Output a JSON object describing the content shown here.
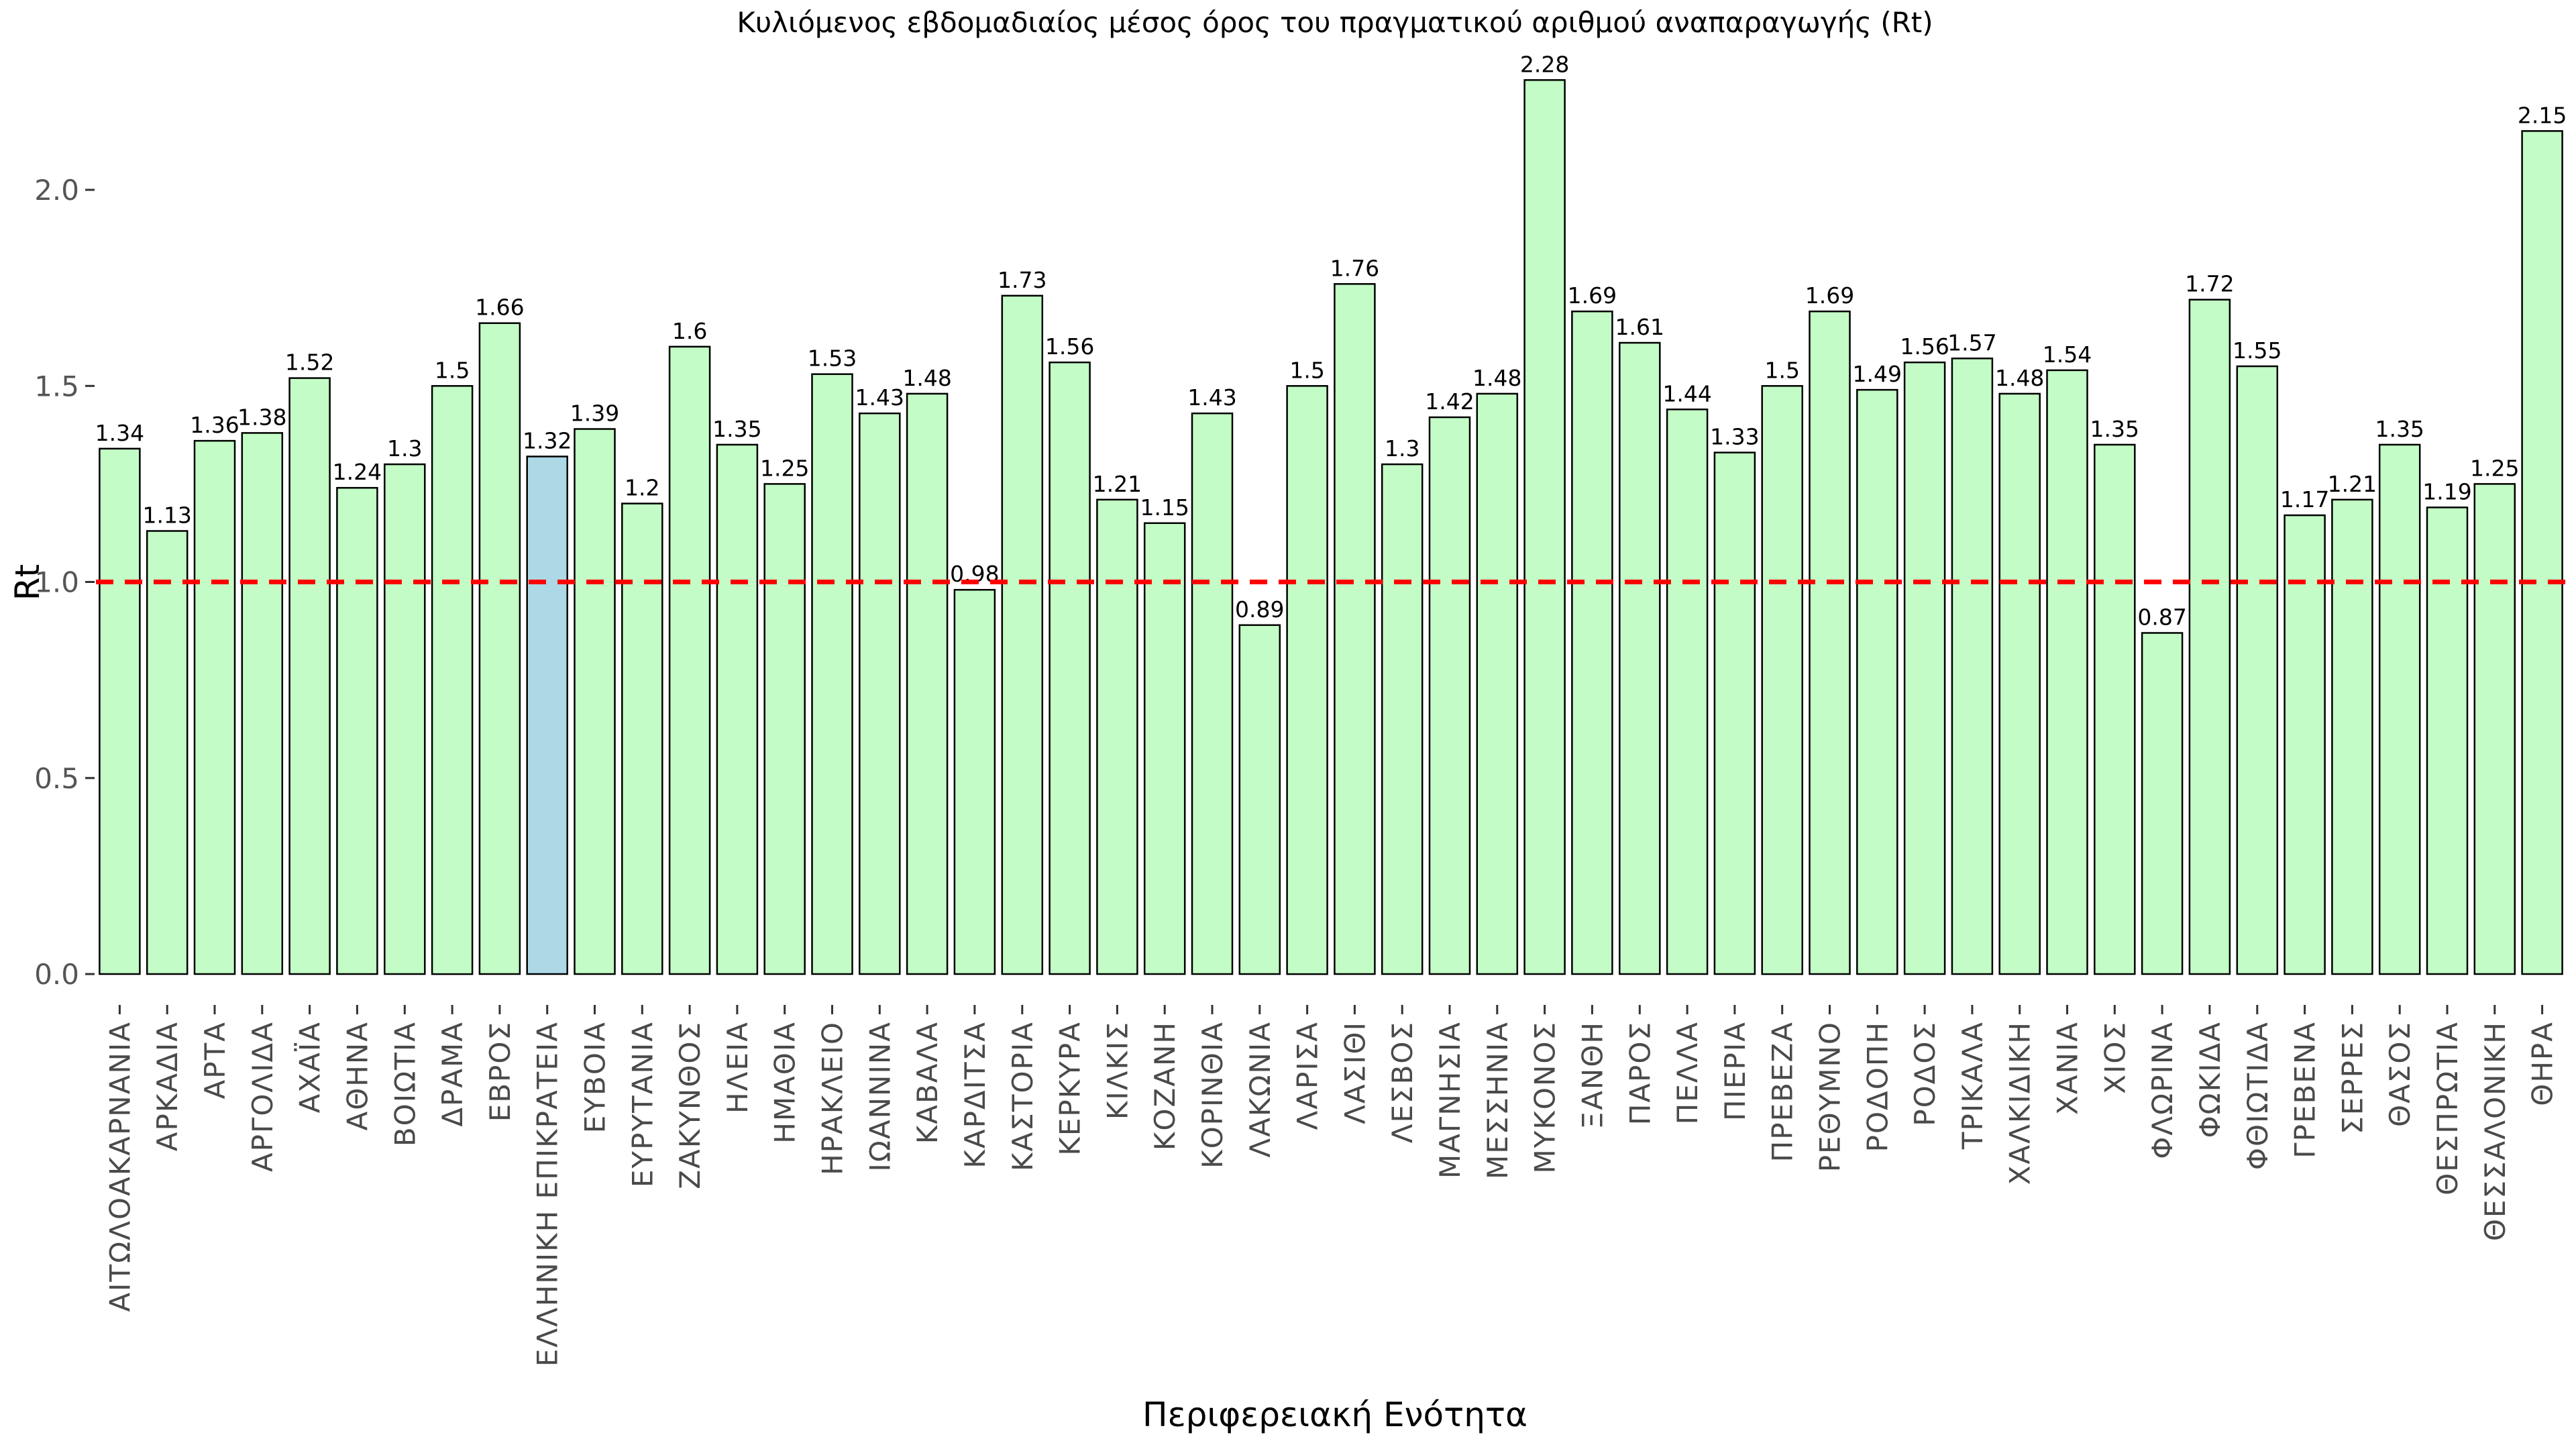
{
  "chart_data": {
    "type": "bar",
    "title": "Κυλιόμενος εβδομαδιαίος μέσος όρος του πραγματικού αριθμού αναπαραγωγής (Rt)",
    "xlabel": "Περιφερειακή Ενότητα",
    "ylabel": "Rt",
    "ylim": [
      0,
      2.35
    ],
    "yticks": [
      0.0,
      0.5,
      1.0,
      1.5,
      2.0
    ],
    "ytick_labels": [
      "0.0",
      "0.5",
      "1.0",
      "1.5",
      "2.0"
    ],
    "grid": "off",
    "legend": "none",
    "reference_line": {
      "value": 1.0,
      "color": "#ff0000",
      "style": "dashed"
    },
    "bar_color": "#c3fcc6",
    "bar_edge_color": "#000000",
    "highlight_category": "ΕΛΛΗΝΙΚΗ ΕΠΙΚΡΑΤΕΙΑ",
    "highlight_color": "#add8e6",
    "categories": [
      "ΑΙΤΩΛΟΑΚΑΡΝΑΝΙΑ",
      "ΑΡΚΑΔΙΑ",
      "ΑΡΤΑ",
      "ΑΡΓΟΛΙΔΑ",
      "ΑΧΑΪΑ",
      "ΑΘΗΝΑ",
      "ΒΟΙΩΤΙΑ",
      "ΔΡΑΜΑ",
      "ΕΒΡΟΣ",
      "ΕΛΛΗΝΙΚΗ ΕΠΙΚΡΑΤΕΙΑ",
      "ΕΥΒΟΙΑ",
      "ΕΥΡΥΤΑΝΙΑ",
      "ΖΑΚΥΝΘΟΣ",
      "ΗΛΕΙΑ",
      "ΗΜΑΘΙΑ",
      "ΗΡΑΚΛΕΙΟ",
      "ΙΩΑΝΝΙΝΑ",
      "ΚΑΒΑΛΑ",
      "ΚΑΡΔΙΤΣΑ",
      "ΚΑΣΤΟΡΙΑ",
      "ΚΕΡΚΥΡΑ",
      "ΚΙΛΚΙΣ",
      "ΚΟΖΑΝΗ",
      "ΚΟΡΙΝΘΙΑ",
      "ΛΑΚΩΝΙΑ",
      "ΛΑΡΙΣΑ",
      "ΛΑΣΙΘΙ",
      "ΛΕΣΒΟΣ",
      "ΜΑΓΝΗΣΙΑ",
      "ΜΕΣΣΗΝΙΑ",
      "ΜΥΚΟΝΟΣ",
      "ΞΑΝΘΗ",
      "ΠΑΡΟΣ",
      "ΠΕΛΛΑ",
      "ΠΙΕΡΙΑ",
      "ΠΡΕΒΕΖΑ",
      "ΡΕΘΥΜΝΟ",
      "ΡΟΔΟΠΗ",
      "ΡΟΔΟΣ",
      "ΤΡΙΚΑΛΑ",
      "ΧΑΛΚΙΔΙΚΗ",
      "ΧΑΝΙΑ",
      "ΧΙΟΣ",
      "ΦΛΩΡΙΝΑ",
      "ΦΩΚΙΔΑ",
      "ΦΘΙΩΤΙΔΑ",
      "ΓΡΕΒΕΝΑ",
      "ΣΕΡΡΕΣ",
      "ΘΑΣΟΣ",
      "ΘΕΣΠΡΩΤΙΑ",
      "ΘΕΣΣΑΛΟΝΙΚΗ",
      "ΘΗΡΑ"
    ],
    "values": [
      1.34,
      1.13,
      1.36,
      1.38,
      1.52,
      1.24,
      1.3,
      1.5,
      1.66,
      1.32,
      1.39,
      1.2,
      1.6,
      1.35,
      1.25,
      1.53,
      1.43,
      1.48,
      0.98,
      1.73,
      1.56,
      1.21,
      1.15,
      1.43,
      0.89,
      1.5,
      1.76,
      1.3,
      1.42,
      1.48,
      2.28,
      1.69,
      1.61,
      1.44,
      1.33,
      1.5,
      1.69,
      1.49,
      1.56,
      1.57,
      1.48,
      1.54,
      1.35,
      0.87,
      1.72,
      1.55,
      1.17,
      1.21,
      1.35,
      1.19,
      1.25,
      2.15
    ]
  }
}
